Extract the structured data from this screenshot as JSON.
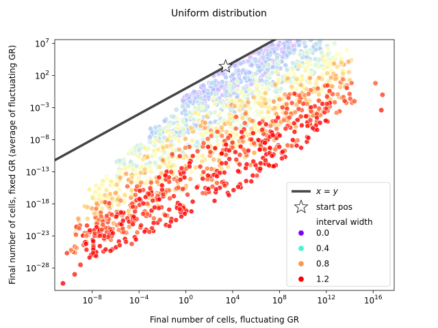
{
  "chart_data": {
    "type": "scatter",
    "title": "Uniform distribution",
    "xlabel": "Final number of cells, fluctuating GR",
    "ylabel": "Final number of cells, fixed GR (average of fluctuating GR)",
    "x_scale": "log",
    "y_scale": "log",
    "xlim_log10": [
      -11.2,
      17.8
    ],
    "ylim_log10": [
      -31.5,
      7.6
    ],
    "x_ticks": [
      {
        "exp": -8,
        "label": "10",
        "sup": "−8"
      },
      {
        "exp": -4,
        "label": "10",
        "sup": "−4"
      },
      {
        "exp": 0,
        "label": "10",
        "sup": "0"
      },
      {
        "exp": 4,
        "label": "10",
        "sup": "4"
      },
      {
        "exp": 8,
        "label": "10",
        "sup": "8"
      },
      {
        "exp": 12,
        "label": "10",
        "sup": "12"
      },
      {
        "exp": 16,
        "label": "10",
        "sup": "16"
      }
    ],
    "y_ticks": [
      {
        "exp": 7,
        "label": "10",
        "sup": "7"
      },
      {
        "exp": 2,
        "label": "10",
        "sup": "2"
      },
      {
        "exp": -3,
        "label": "10",
        "sup": "−3"
      },
      {
        "exp": -8,
        "label": "10",
        "sup": "−8"
      },
      {
        "exp": -13,
        "label": "10",
        "sup": "−13"
      },
      {
        "exp": -18,
        "label": "10",
        "sup": "−18"
      },
      {
        "exp": -23,
        "label": "10",
        "sup": "−23"
      },
      {
        "exp": -28,
        "label": "10",
        "sup": "−28"
      }
    ],
    "reference_line": {
      "label": "x = y",
      "color": "#444444"
    },
    "start_pos": {
      "label": "start pos",
      "x_log10": 3.4,
      "y_log10": 3.4
    },
    "colorbar_legend_title": "interval width",
    "legend_entries": [
      {
        "label": "0.0",
        "value": 0.0,
        "color": "#8000ff"
      },
      {
        "label": "0.4",
        "value": 0.4,
        "color": "#4df3ce"
      },
      {
        "label": "0.8",
        "value": 0.8,
        "color": "#ff964f"
      },
      {
        "label": "1.2",
        "value": 1.2,
        "color": "#ff0000"
      }
    ],
    "legend_placement": "lower-right",
    "grid": false,
    "point_count_note": "dense cloud of points colored by interval width",
    "cloud_bands": [
      {
        "value": 0.1,
        "x_log10": [
          -0.3,
          9.8
        ],
        "y_upper_offset": 0.0,
        "y_lower_offset": -2.5
      },
      {
        "value": 0.3,
        "x_log10": [
          -3.2,
          11.5
        ],
        "y_upper_offset": -1.2,
        "y_lower_offset": -5.5
      },
      {
        "value": 0.5,
        "x_log10": [
          -6.0,
          12.8
        ],
        "y_upper_offset": -2.8,
        "y_lower_offset": -8.5
      },
      {
        "value": 0.7,
        "x_log10": [
          -8.4,
          13.8
        ],
        "y_upper_offset": -4.2,
        "y_lower_offset": -11.2
      },
      {
        "value": 0.9,
        "x_log10": [
          -9.5,
          14.4
        ],
        "y_upper_offset": -6.0,
        "y_lower_offset": -14.0
      },
      {
        "value": 1.1,
        "x_log10": [
          -10.3,
          14.2
        ],
        "y_upper_offset": -8.5,
        "y_lower_offset": -16.5
      },
      {
        "value": 1.25,
        "x_log10": [
          -8.8,
          12.4
        ],
        "y_upper_offset": -11.0,
        "y_lower_offset": -18.0
      }
    ],
    "outliers": [
      {
        "x_log10": -10.5,
        "y_log10": -30.4,
        "value": 1.25
      },
      {
        "x_log10": -9.5,
        "y_log10": -29.0,
        "value": 1.2
      },
      {
        "x_log10": -9.0,
        "y_log10": -27.5,
        "value": 1.2
      },
      {
        "x_log10": -8.5,
        "y_log10": -23.0,
        "value": 1.0
      },
      {
        "x_log10": -7.8,
        "y_log10": -19.5,
        "value": 0.9
      },
      {
        "x_log10": 16.2,
        "y_log10": 0.8,
        "value": 1.1
      },
      {
        "x_log10": 16.8,
        "y_log10": -1.0,
        "value": 1.15
      },
      {
        "x_log10": 16.7,
        "y_log10": -3.4,
        "value": 1.2
      },
      {
        "x_log10": 14.4,
        "y_log10": -2.0,
        "value": 1.1
      },
      {
        "x_log10": 12.8,
        "y_log10": 1.5,
        "value": 0.95
      }
    ]
  }
}
